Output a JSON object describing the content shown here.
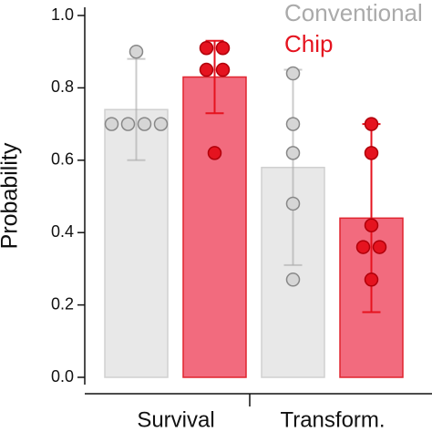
{
  "chart_data": {
    "type": "bar",
    "y_label": "Probability",
    "categories": [
      "Survival",
      "Transform."
    ],
    "ylim": [
      0,
      1.0
    ],
    "yticks": [
      {
        "value": 0,
        "label": "0.0"
      },
      0.2,
      0.4,
      0.6,
      0.8,
      {
        "value": 1.0,
        "label": "1.0"
      }
    ],
    "series": [
      {
        "name": "Conventional",
        "color": "#aaaaaa",
        "bar_color": "#e8e8e8",
        "values": [
          0.74,
          0.58
        ],
        "errors": [
          0.14,
          0.27
        ],
        "points": [
          [
            0.9,
            0.7,
            0.7,
            0.7,
            0.7
          ],
          [
            0.84,
            0.7,
            0.62,
            0.48,
            0.27
          ]
        ]
      },
      {
        "name": "Chip",
        "color": "#e5131f",
        "bar_color": "#f26b7e",
        "values": [
          0.83,
          0.44
        ],
        "errors": [
          0.1,
          0.26
        ],
        "points": [
          [
            0.91,
            0.91,
            0.85,
            0.85,
            0.62
          ],
          [
            0.7,
            0.62,
            0.42,
            0.36,
            0.36,
            0.27
          ]
        ]
      }
    ]
  }
}
